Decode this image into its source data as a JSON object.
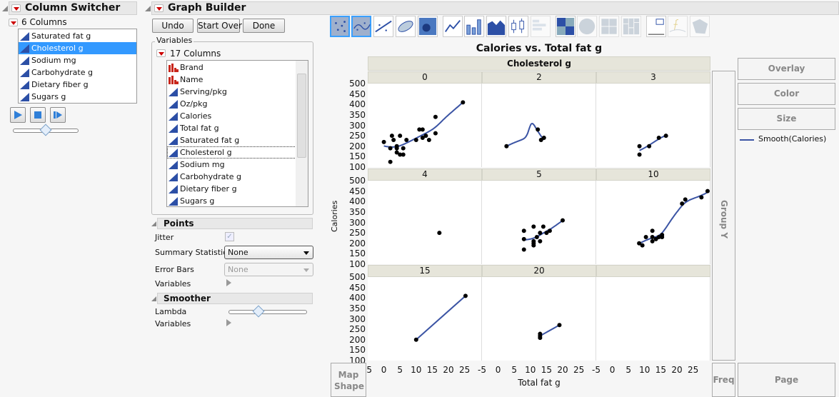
{
  "column_switcher": {
    "title": "Column Switcher",
    "count_label": "6 Columns",
    "items": [
      "Saturated fat g",
      "Cholesterol g",
      "Sodium mg",
      "Carbohydrate g",
      "Dietary fiber g",
      "Sugars g"
    ],
    "selected": "Cholesterol g",
    "slider_value": 0.5
  },
  "graph_builder": {
    "title": "Graph Builder",
    "undo": "Undo",
    "start_over": "Start Over",
    "done": "Done",
    "variables": {
      "label": "Variables",
      "count_label": "17 Columns",
      "items": [
        {
          "name": "Brand",
          "type": "nominal"
        },
        {
          "name": "Name",
          "type": "nominal"
        },
        {
          "name": "Serving/pkg",
          "type": "continuous"
        },
        {
          "name": "Oz/pkg",
          "type": "continuous"
        },
        {
          "name": "Calories",
          "type": "continuous"
        },
        {
          "name": "Total fat g",
          "type": "continuous"
        },
        {
          "name": "Saturated fat g",
          "type": "continuous"
        },
        {
          "name": "Cholesterol g",
          "type": "continuous"
        },
        {
          "name": "Sodium mg",
          "type": "continuous"
        },
        {
          "name": "Carbohydrate g",
          "type": "continuous"
        },
        {
          "name": "Dietary fiber g",
          "type": "continuous"
        },
        {
          "name": "Sugars g",
          "type": "continuous"
        }
      ],
      "focused": "Cholesterol g"
    },
    "points": {
      "title": "Points",
      "jitter_label": "Jitter",
      "jitter": true,
      "summary_label": "Summary Statistic",
      "summary_value": "None",
      "error_bars_label": "Error Bars",
      "error_bars_value": "None",
      "variables_label": "Variables"
    },
    "smoother": {
      "title": "Smoother",
      "lambda_label": "Lambda",
      "lambda": 0.38,
      "variables_label": "Variables"
    },
    "toolbar": [
      "points-icon",
      "smoother-icon",
      "line-of-fit-icon",
      "ellipse-icon",
      "contour-icon",
      "line-icon",
      "bar-icon",
      "area-icon",
      "box-plot-icon",
      "histogram-icon",
      "heatmap-icon",
      "pie-icon",
      "treemap-icon",
      "mosaic-icon",
      "caption-box-icon",
      "formula-icon",
      "map-shapes-icon"
    ],
    "zones": {
      "overlay": "Overlay",
      "color": "Color",
      "size": "Size",
      "group_y": "Group Y",
      "freq": "Freq",
      "page": "Page",
      "map_shape": "Map Shape"
    },
    "legend": {
      "label": "Smooth(Calories)",
      "color": "#3b54a4"
    }
  },
  "chart_data": {
    "type": "scatter",
    "title": "Calories vs. Total fat g",
    "xlabel": "Total fat g",
    "ylabel": "Calories",
    "group_x_label": "Cholesterol g",
    "xlim": [
      -5,
      30.4
    ],
    "ylim": [
      100,
      500
    ],
    "xticks": [
      -5,
      0,
      5,
      10,
      15,
      20,
      25
    ],
    "yticks": [
      100,
      150,
      200,
      250,
      300,
      350,
      400,
      450,
      500
    ],
    "smoother": true,
    "point_color": "#000000",
    "smooth_color": "#3b54a4",
    "panels": [
      {
        "label": "0",
        "points": [
          [
            0,
            220
          ],
          [
            2,
            190
          ],
          [
            2,
            125
          ],
          [
            2.5,
            250
          ],
          [
            3,
            230
          ],
          [
            4,
            200
          ],
          [
            4,
            190
          ],
          [
            4,
            170
          ],
          [
            5,
            250
          ],
          [
            5,
            160
          ],
          [
            6,
            160
          ],
          [
            6,
            190
          ],
          [
            7,
            230
          ],
          [
            10,
            230
          ],
          [
            11,
            280
          ],
          [
            12,
            280
          ],
          [
            12,
            240
          ],
          [
            13,
            250
          ],
          [
            14,
            230
          ],
          [
            16,
            340
          ],
          [
            16,
            262
          ],
          [
            24.5,
            410
          ]
        ]
      },
      {
        "label": "2",
        "points": [
          [
            2.6,
            200
          ],
          [
            12.3,
            280
          ],
          [
            13.3,
            230
          ],
          [
            14.2,
            240
          ]
        ]
      },
      {
        "label": "3",
        "points": [
          [
            8.4,
            200
          ],
          [
            8.4,
            160
          ],
          [
            11.4,
            200
          ],
          [
            14.4,
            240
          ],
          [
            16.6,
            250
          ]
        ]
      },
      {
        "label": "4",
        "points": [
          [
            17.2,
            250
          ]
        ]
      },
      {
        "label": "5",
        "points": [
          [
            8,
            260
          ],
          [
            8,
            220
          ],
          [
            8,
            170
          ],
          [
            11,
            280
          ],
          [
            11,
            210
          ],
          [
            11,
            200
          ],
          [
            11,
            190
          ],
          [
            12,
            230
          ],
          [
            13,
            250
          ],
          [
            13,
            210
          ],
          [
            14,
            280
          ],
          [
            15,
            250
          ],
          [
            16,
            260
          ],
          [
            20,
            310
          ]
        ]
      },
      {
        "label": "10",
        "points": [
          [
            8.3,
            200
          ],
          [
            9.3,
            190
          ],
          [
            10.4,
            230
          ],
          [
            12.4,
            260
          ],
          [
            12.4,
            230
          ],
          [
            12.4,
            210
          ],
          [
            13.5,
            220
          ],
          [
            14.4,
            230
          ],
          [
            15.4,
            240
          ],
          [
            15.4,
            230
          ],
          [
            21.6,
            390
          ],
          [
            22.6,
            410
          ],
          [
            27.6,
            420
          ],
          [
            29.5,
            450
          ]
        ]
      },
      {
        "label": "15",
        "points": [
          [
            10,
            200
          ],
          [
            25.3,
            410
          ]
        ]
      },
      {
        "label": "20",
        "points": [
          [
            13,
            228
          ],
          [
            13,
            218
          ],
          [
            13,
            209
          ],
          [
            19,
            270
          ]
        ]
      },
      {
        "label": "",
        "points": []
      }
    ]
  }
}
